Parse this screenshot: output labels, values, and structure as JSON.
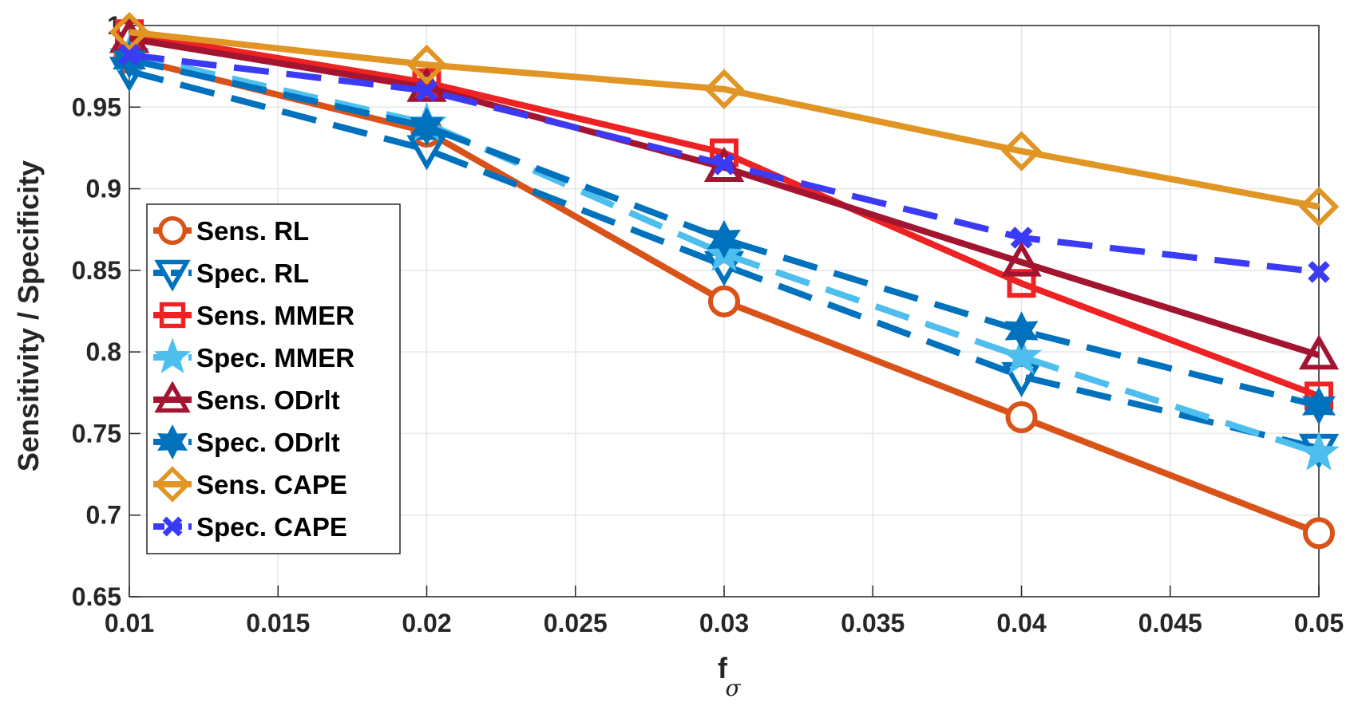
{
  "chart_data": {
    "type": "line",
    "title": "",
    "xlabel": "f",
    "xlabel_sub": "σ",
    "ylabel": "Sensitivity / Specificity",
    "xlim": [
      0.01,
      0.05
    ],
    "ylim": [
      0.65,
      1.0
    ],
    "grid": true,
    "legend_position": "center-left",
    "x": [
      0.01,
      0.02,
      0.03,
      0.04,
      0.05
    ],
    "xticks": [
      0.01,
      0.015,
      0.02,
      0.025,
      0.03,
      0.035,
      0.04,
      0.045,
      0.05
    ],
    "xtick_labels": [
      "0.01",
      "0.015",
      "0.02",
      "0.025",
      "0.03",
      "0.035",
      "0.04",
      "0.045",
      "0.05"
    ],
    "yticks": [
      0.65,
      0.7,
      0.75,
      0.8,
      0.85,
      0.9,
      0.95,
      1.0
    ],
    "ytick_labels": [
      "0.65",
      "0.7",
      "0.75",
      "0.8",
      "0.85",
      "0.9",
      "0.95",
      "1"
    ],
    "series": [
      {
        "name": "Sens. RL",
        "values": [
          0.98,
          0.935,
          0.831,
          0.76,
          0.689
        ],
        "color": "#d95319",
        "dash": false,
        "marker": "circle"
      },
      {
        "name": "Spec. RL",
        "values": [
          0.972,
          0.924,
          0.853,
          0.785,
          0.741
        ],
        "color": "#0072bd",
        "dash": true,
        "marker": "triangle-down"
      },
      {
        "name": "Sens. MMER",
        "values": [
          0.995,
          0.965,
          0.922,
          0.842,
          0.773
        ],
        "color": "#ee2222",
        "dash": false,
        "marker": "square"
      },
      {
        "name": "Spec. MMER",
        "values": [
          0.982,
          0.94,
          0.86,
          0.797,
          0.738
        ],
        "color": "#4dbeee",
        "dash": true,
        "marker": "pentagram"
      },
      {
        "name": "Sens. ODrlt",
        "values": [
          0.992,
          0.962,
          0.913,
          0.855,
          0.798
        ],
        "color": "#a2142f",
        "dash": false,
        "marker": "triangle-up"
      },
      {
        "name": "Spec. ODrlt",
        "values": [
          0.979,
          0.938,
          0.869,
          0.813,
          0.767
        ],
        "color": "#0072bd",
        "dash": true,
        "marker": "hexagram"
      },
      {
        "name": "Sens. CAPE",
        "values": [
          0.996,
          0.976,
          0.961,
          0.923,
          0.889
        ],
        "color": "#e09525",
        "dash": false,
        "marker": "diamond"
      },
      {
        "name": "Spec. CAPE",
        "values": [
          0.982,
          0.96,
          0.915,
          0.87,
          0.849
        ],
        "color": "#3b3bf5",
        "dash": true,
        "marker": "x"
      }
    ]
  }
}
